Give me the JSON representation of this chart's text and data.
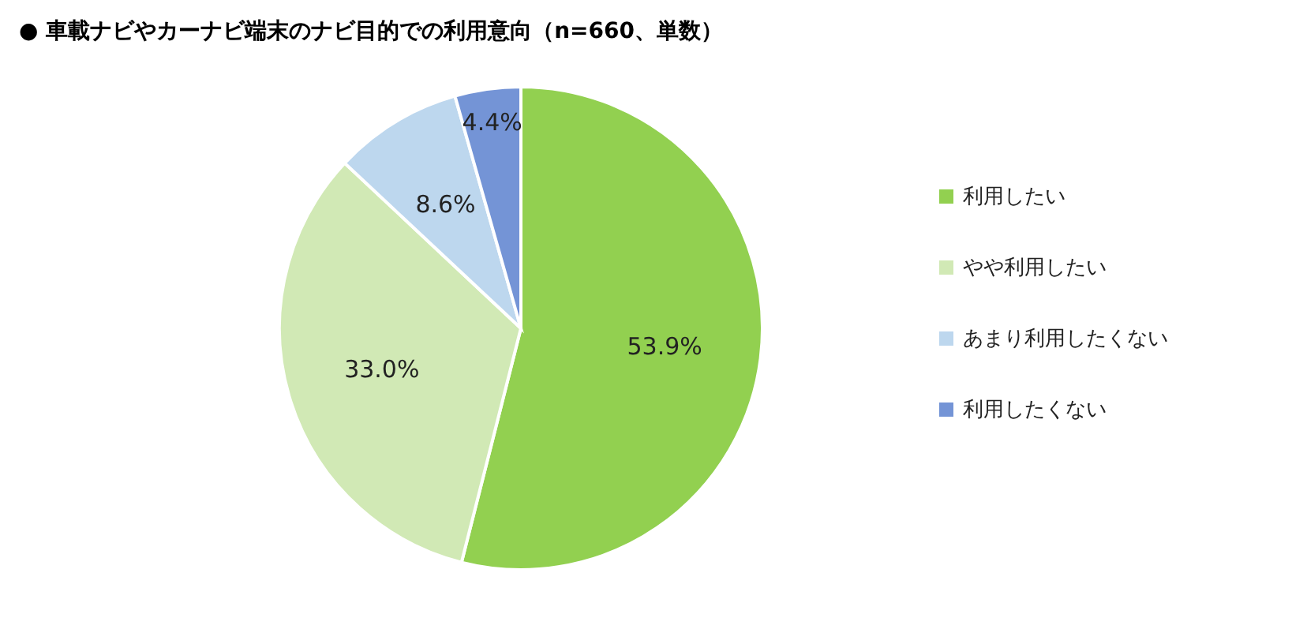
{
  "chart_data": {
    "type": "pie",
    "title": "● 車載ナビやカーナビ端末のナビ目的での利用意向（n=660、単数）",
    "categories": [
      "利用したい",
      "やや利用したい",
      "あまり利用したくない",
      "利用したくない"
    ],
    "values": [
      53.9,
      33.0,
      8.6,
      4.4
    ],
    "colors": [
      "#92d050",
      "#d1e9b5",
      "#bdd7ee",
      "#7494d6"
    ],
    "value_labels": [
      "53.9%",
      "33.0%",
      "8.6%",
      "4.4%"
    ],
    "legend": "right"
  }
}
